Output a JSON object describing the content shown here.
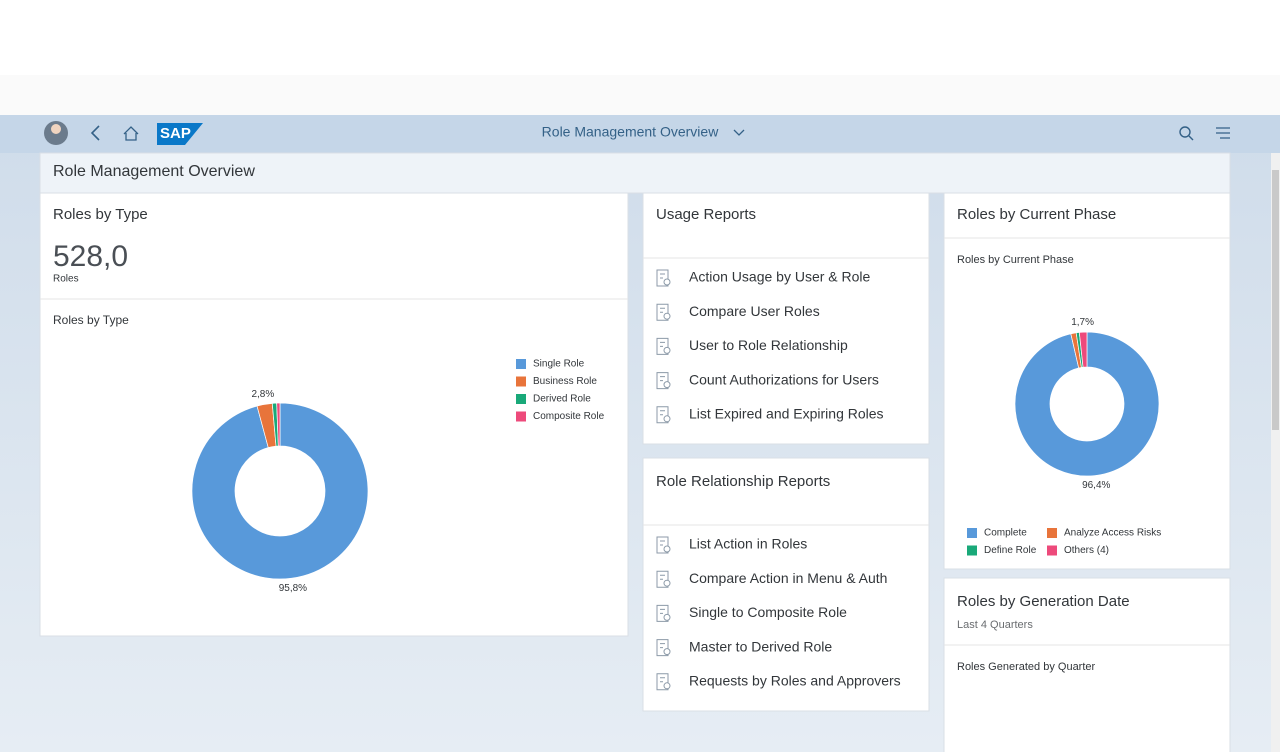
{
  "shell": {
    "title": "Role Management Overview"
  },
  "page": {
    "title": "Role Management Overview"
  },
  "roles_by_type": {
    "title": "Roles by Type",
    "kpi": "528,0",
    "kpi_unit": "Roles",
    "chart_data": {
      "type": "donut",
      "title": "Roles by Type",
      "categories": [
        "Single Role",
        "Business Role",
        "Derived Role",
        "Composite Role"
      ],
      "values": [
        95.8,
        2.8,
        0.8,
        0.6
      ],
      "value_labels": [
        "95,8%",
        "2,8%",
        null,
        null
      ],
      "colors": [
        "#5899da",
        "#e8743b",
        "#19a979",
        "#ed4a7b"
      ],
      "legend": "top-right"
    }
  },
  "usage_reports": {
    "title": "Usage Reports",
    "items": [
      "Action Usage by User & Role",
      "Compare User Roles",
      "User to Role Relationship",
      "Count Authorizations for Users",
      "List Expired and Expiring Roles"
    ]
  },
  "relationship_reports": {
    "title": "Role Relationship Reports",
    "items": [
      "List Action in Roles",
      "Compare Action in Menu & Auth",
      "Single to Composite Role",
      "Master to Derived Role",
      "Requests by Roles and Approvers"
    ]
  },
  "roles_by_phase": {
    "title": "Roles by Current Phase",
    "chart_data": {
      "type": "donut",
      "title": "Roles by Current Phase",
      "categories": [
        "Complete",
        "Analyze Access Risks",
        "Define Role",
        "Others (4)"
      ],
      "values": [
        96.4,
        1.2,
        0.7,
        1.7
      ],
      "value_labels": [
        "96,4%",
        null,
        null,
        "1,7%"
      ],
      "colors": [
        "#5899da",
        "#e8743b",
        "#19a979",
        "#ed4a7b"
      ],
      "legend": "bottom"
    }
  },
  "roles_by_generation": {
    "title": "Roles by Generation Date",
    "subtitle": "Last 4 Quarters",
    "chart_title": "Roles Generated by Quarter"
  }
}
